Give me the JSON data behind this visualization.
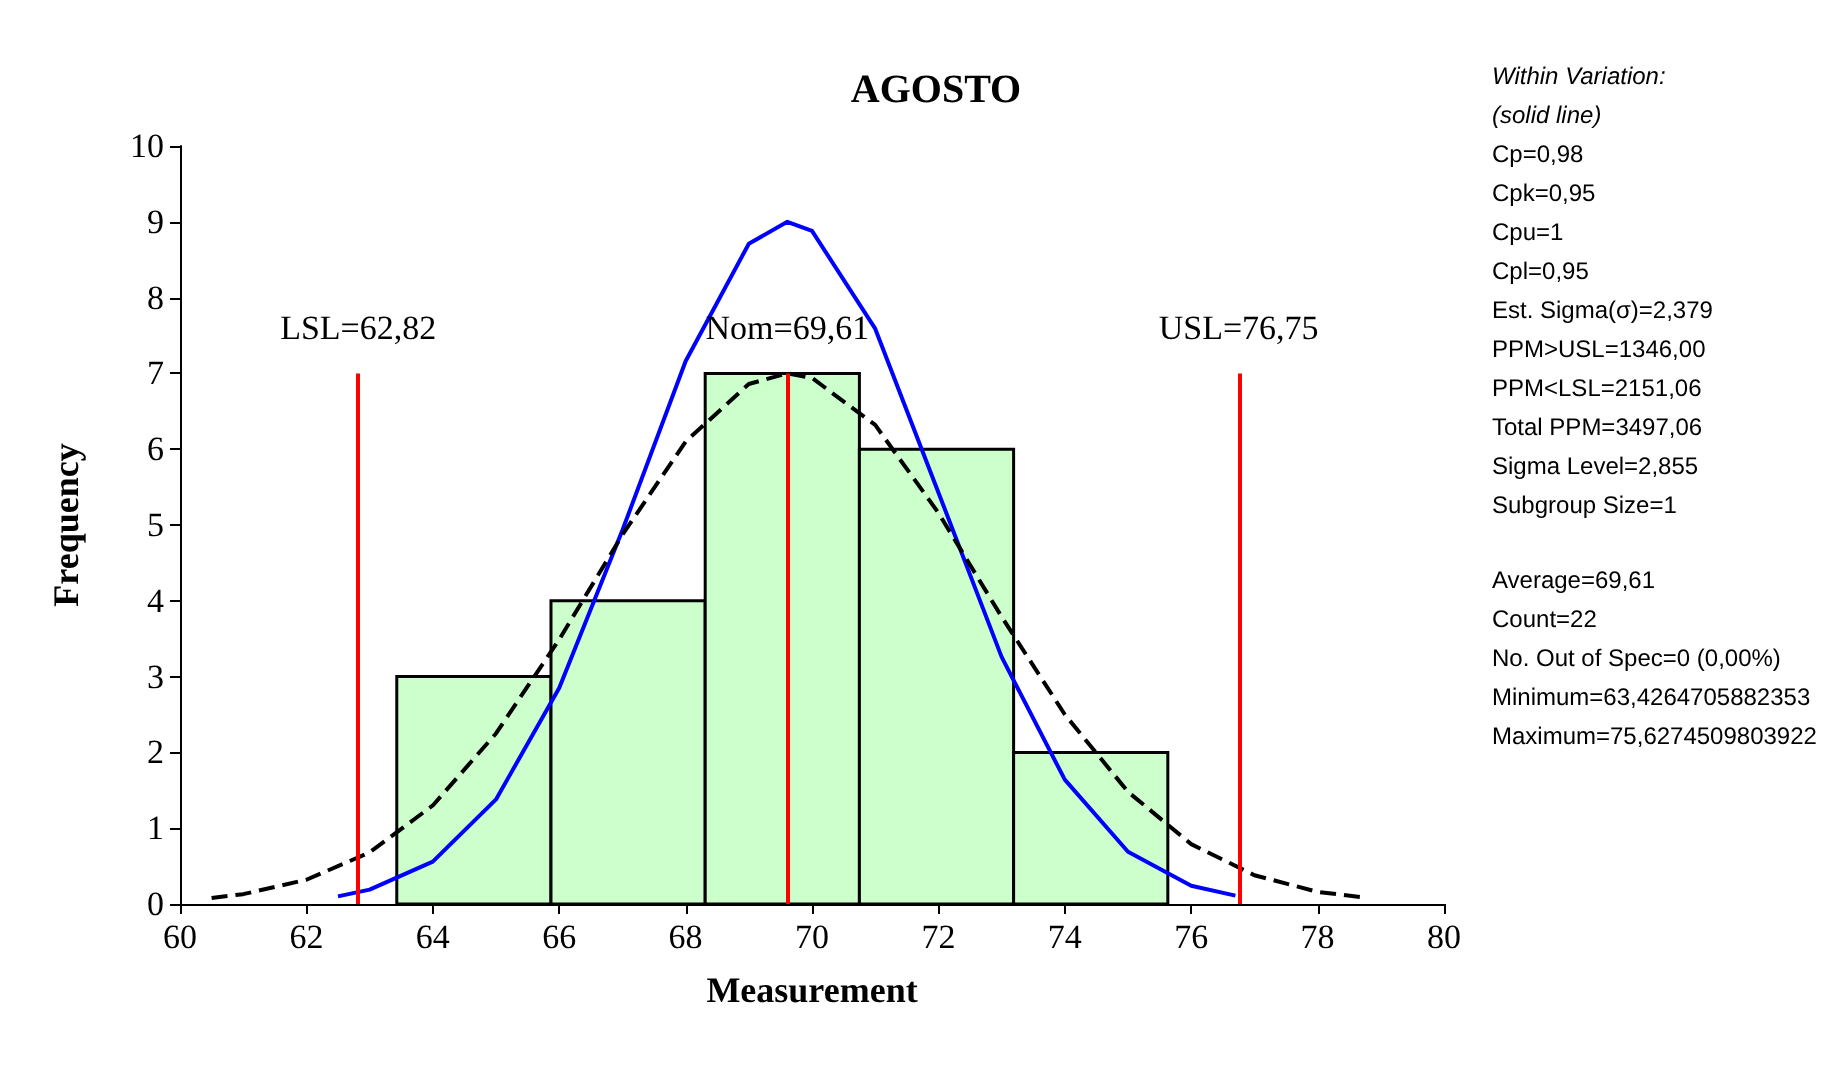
{
  "chart_data": {
    "type": "histogram",
    "title": "AGOSTO",
    "xlabel": "Measurement",
    "ylabel": "Frequency",
    "bins": [
      63.43,
      65.87,
      68.31,
      70.75,
      73.19,
      75.63
    ],
    "values": [
      3,
      4,
      7,
      6,
      2
    ],
    "color": "#ccffcc",
    "xlim": [
      60,
      80
    ],
    "xticks": [
      60,
      62,
      64,
      66,
      68,
      70,
      72,
      74,
      76,
      78,
      80
    ],
    "ylim": [
      0,
      10
    ],
    "yticks": [
      0,
      1,
      2,
      3,
      4,
      5,
      6,
      7,
      8,
      9,
      10
    ],
    "marker": "none",
    "series": [
      {
        "type": "line",
        "color": "#0000ff",
        "line_style": "solid",
        "x": [
          62.5,
          63,
          64,
          65,
          66,
          67,
          68,
          69,
          69.61,
          70,
          71,
          72,
          73,
          74,
          75,
          76,
          76.7
        ],
        "values": [
          0.1,
          0.19,
          0.56,
          1.38,
          2.85,
          4.93,
          7.16,
          8.71,
          9,
          8.88,
          7.59,
          5.43,
          3.26,
          1.64,
          0.69,
          0.24,
          0.11
        ]
      },
      {
        "type": "line",
        "color": "#000000",
        "line_style": "dashed",
        "x": [
          60.5,
          61,
          62,
          63,
          64,
          65,
          66,
          67,
          68,
          69,
          69.61,
          70,
          71,
          72,
          73,
          74,
          75,
          76,
          77,
          78,
          78.7
        ],
        "values": [
          0.08,
          0.13,
          0.32,
          0.68,
          1.3,
          2.25,
          3.49,
          4.87,
          6.1,
          6.86,
          7,
          6.94,
          6.32,
          5.16,
          3.79,
          2.5,
          1.48,
          0.79,
          0.38,
          0.16,
          0.09
        ]
      }
    ],
    "ref_lines": [
      {
        "axis": "x",
        "value": 62.82,
        "label": "LSL=62,82",
        "color": "#ff0000"
      },
      {
        "axis": "x",
        "value": 69.61,
        "label": "Nom=69,61",
        "color": "#ff0000"
      },
      {
        "axis": "x",
        "value": 76.75,
        "label": "USL=76,75",
        "color": "#ff0000"
      }
    ],
    "annotations": [
      "Within Variation:\n(solid line)",
      "Cp=0,98\nCpk=0,95\nCpu=1\nCpl=0,95\nEst. Sigma(σ)=2,379\nPPM>USL=1346,00\nPPM<LSL=2151,06\nTotal PPM=3497,06\nSigma Level=2,855\nSubgroup Size=1",
      "Average=69,61\nCount=22\nNo. Out of Spec=0 (0,00%)\nMinimum=63,4264705882353\nMaximum=75,6274509803922"
    ]
  }
}
